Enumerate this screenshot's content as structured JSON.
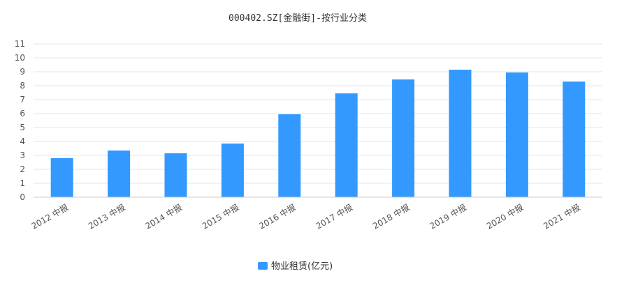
{
  "chart_data": {
    "type": "bar",
    "title": "000402.SZ[金融街]-按行业分类",
    "categories": [
      "2012 中报",
      "2013 中报",
      "2014 中报",
      "2015 中报",
      "2016 中报",
      "2017 中报",
      "2018 中报",
      "2019 中报",
      "2020 中报",
      "2021 中报"
    ],
    "series": [
      {
        "name": "物业租赁(亿元)",
        "color": "#3399ff",
        "values": [
          2.8,
          3.35,
          3.15,
          3.85,
          5.95,
          7.45,
          8.45,
          9.15,
          8.95,
          8.3
        ]
      }
    ],
    "yticks": [
      0,
      1,
      2,
      3,
      4,
      5,
      6,
      7,
      8,
      9,
      10,
      11
    ],
    "ylim": [
      0,
      11
    ],
    "xlabel": "",
    "ylabel": "",
    "grid": true,
    "legend_position": "bottom-center"
  }
}
